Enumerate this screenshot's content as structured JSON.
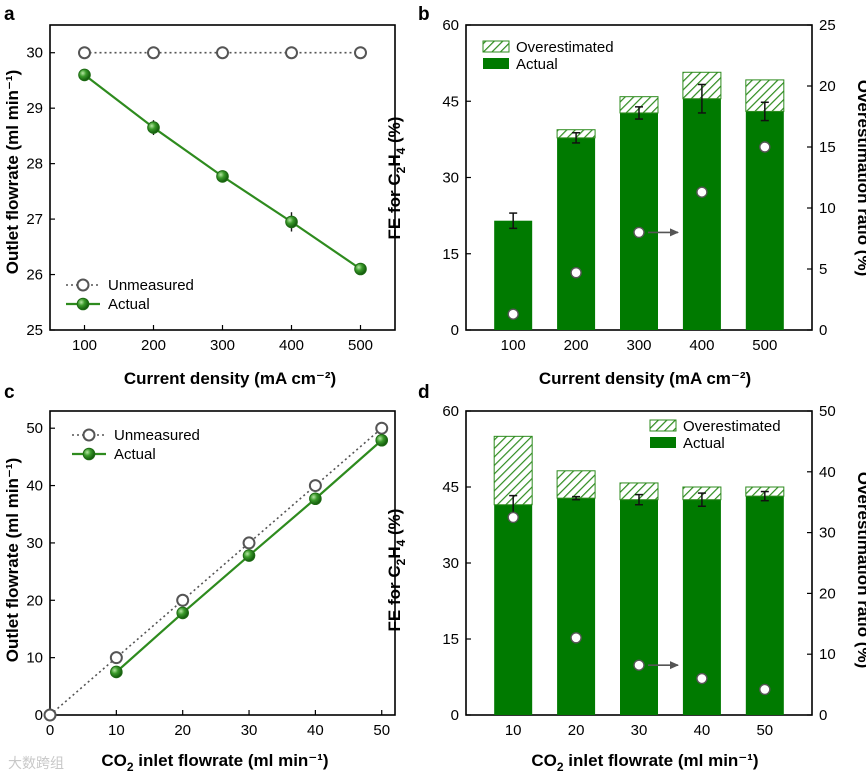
{
  "chart_data": [
    {
      "panel": "a",
      "type": "line",
      "xlabel": "Current density (mA cm⁻²)",
      "ylabel": "Outlet flowrate (ml min⁻¹)",
      "x": [
        100,
        200,
        300,
        400,
        500
      ],
      "xlim": [
        50,
        550
      ],
      "ylim": [
        25,
        30.5
      ],
      "xticks": [
        100,
        200,
        300,
        400,
        500
      ],
      "yticks": [
        25,
        26,
        27,
        28,
        29,
        30
      ],
      "series": [
        {
          "name": "Unmeasured",
          "values": [
            30,
            30,
            30,
            30,
            30
          ],
          "style": "dotted-open",
          "color": "#555555"
        },
        {
          "name": "Actual",
          "values": [
            29.6,
            28.65,
            27.77,
            26.95,
            26.1
          ],
          "errors": [
            0.05,
            0.08,
            0.05,
            0.12,
            0.04
          ],
          "style": "solid-filled",
          "color": "#2e8b1e"
        }
      ],
      "legend": "bottom-left"
    },
    {
      "panel": "b",
      "type": "bar",
      "xlabel": "Current density (mA cm⁻²)",
      "ylabel": "FE for C2H4 (%)",
      "ylabel2": "Overestimation ratio (%)",
      "categories": [
        "100",
        "200",
        "300",
        "400",
        "500"
      ],
      "ylim": [
        0,
        60
      ],
      "ylim2": [
        0,
        25
      ],
      "yticks": [
        0,
        15,
        30,
        45,
        60
      ],
      "yticks2": [
        0,
        5,
        10,
        15,
        20,
        25
      ],
      "series": [
        {
          "name": "Actual",
          "values": [
            21.5,
            37.8,
            42.7,
            45.5,
            43.0
          ],
          "errors": [
            1.5,
            1.0,
            1.2,
            2.8,
            1.8
          ],
          "color": "#007a00"
        },
        {
          "name": "Overestimated",
          "values": [
            0.0,
            1.6,
            3.2,
            5.2,
            6.2
          ],
          "pattern": "hatched",
          "color": "#2e8b1e"
        }
      ],
      "ratio": {
        "name": "Overestimation ratio",
        "values": [
          1.3,
          4.7,
          8.0,
          11.3,
          15.0
        ]
      },
      "arrow_annotation": "→ right axis",
      "legend": "top-left"
    },
    {
      "panel": "c",
      "type": "line",
      "xlabel_main": "CO",
      "xlabel_sub": "2",
      "xlabel_rest": " inlet flowrate (ml min⁻¹)",
      "ylabel": "Outlet flowrate (ml min⁻¹)",
      "x": [
        0,
        10,
        20,
        30,
        40,
        50
      ],
      "xlim": [
        0,
        52
      ],
      "ylim": [
        0,
        53
      ],
      "xticks": [
        0,
        10,
        20,
        30,
        40,
        50
      ],
      "yticks": [
        0,
        10,
        20,
        30,
        40,
        50
      ],
      "series": [
        {
          "name": "Unmeasured",
          "values": [
            0,
            10,
            20,
            30,
            40,
            50
          ],
          "style": "dotted-open",
          "color": "#555555"
        },
        {
          "name": "Actual",
          "values": [
            null,
            7.5,
            17.8,
            27.8,
            37.7,
            47.9
          ],
          "style": "solid-filled",
          "color": "#2e8b1e"
        }
      ],
      "legend": "top-left"
    },
    {
      "panel": "d",
      "type": "bar",
      "xlabel_main": "CO",
      "xlabel_sub": "2",
      "xlabel_rest": " inlet flowrate (ml min⁻¹)",
      "ylabel": "FE for C2H4 (%)",
      "ylabel2": "Overestimation ratio (%)",
      "categories": [
        "10",
        "20",
        "30",
        "40",
        "50"
      ],
      "ylim": [
        0,
        60
      ],
      "ylim2": [
        0,
        50
      ],
      "yticks": [
        0,
        15,
        30,
        45,
        60
      ],
      "yticks2": [
        0,
        10,
        20,
        30,
        40,
        50
      ],
      "series": [
        {
          "name": "Actual",
          "values": [
            41.5,
            42.8,
            42.5,
            42.5,
            43.2
          ],
          "errors": [
            1.8,
            0.3,
            1.0,
            1.3,
            0.9
          ],
          "color": "#007a00"
        },
        {
          "name": "Overestimated",
          "values": [
            13.5,
            5.4,
            3.3,
            2.5,
            1.8
          ],
          "pattern": "hatched",
          "color": "#2e8b1e"
        }
      ],
      "ratio": {
        "name": "Overestimation ratio",
        "values": [
          32.5,
          12.7,
          8.2,
          6.0,
          4.2
        ]
      },
      "arrow_annotation": "→ right axis",
      "legend": "top-right"
    }
  ],
  "watermark": "大数跨组"
}
